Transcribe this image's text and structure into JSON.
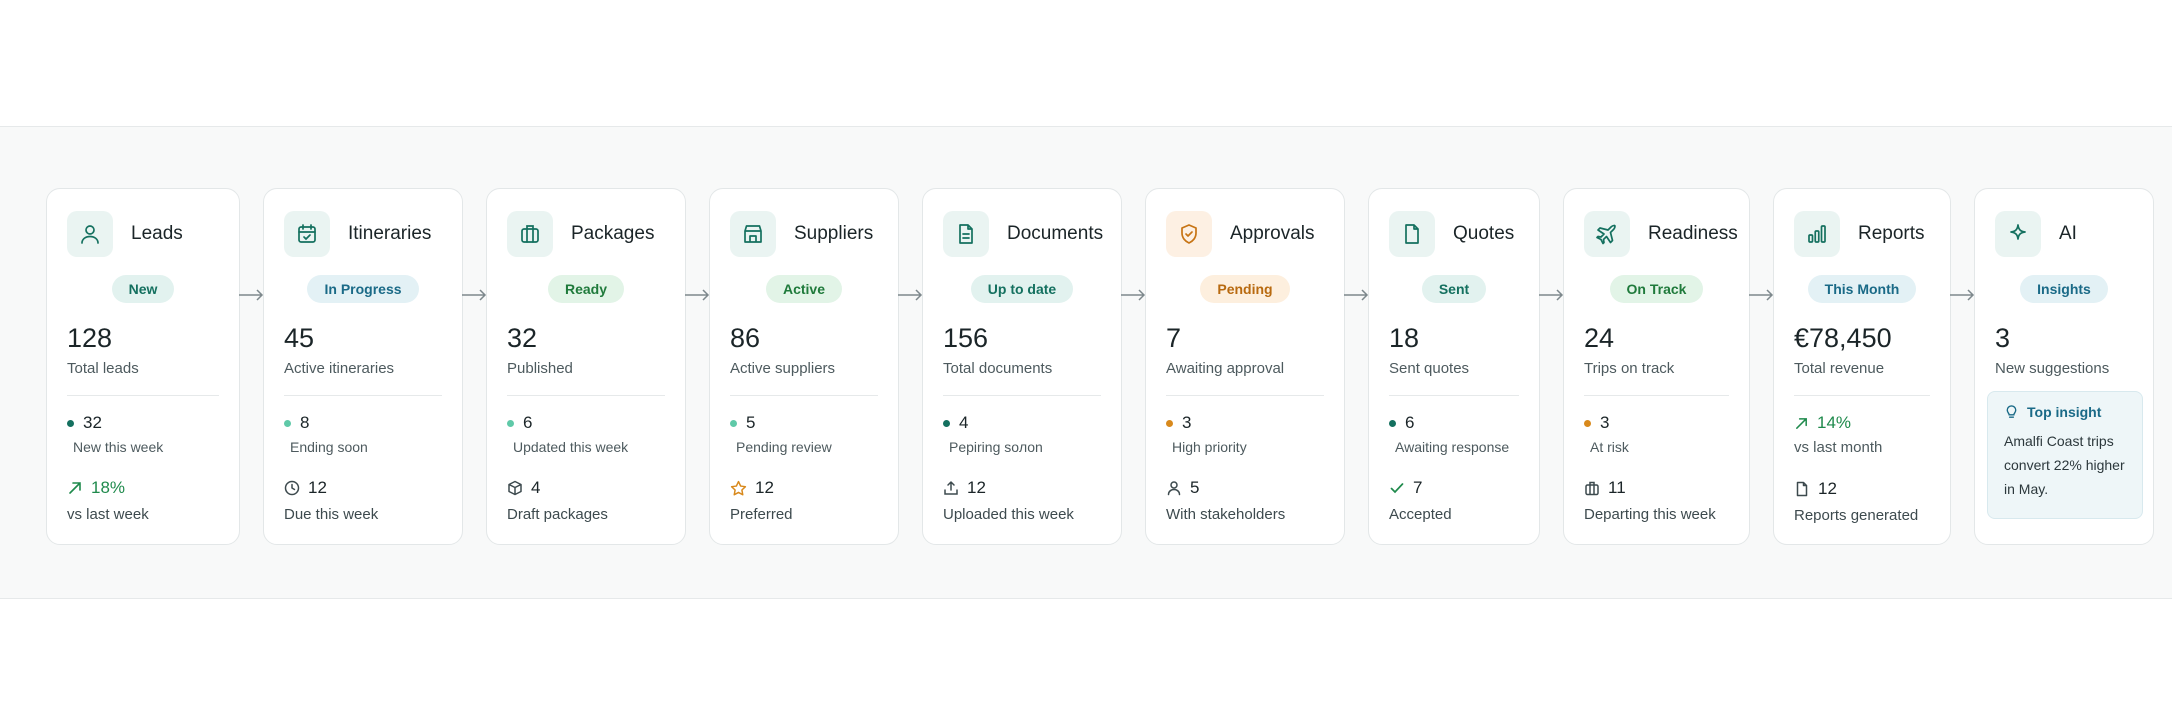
{
  "colors": {
    "teal": "#14705f",
    "blue": "#1a6a87",
    "green": "#1f7a3b",
    "orange": "#d8891c",
    "mint": "#5fc9a8"
  },
  "cards": [
    {
      "title": "Leads",
      "icon": "user-icon",
      "badge": "New",
      "value": "128",
      "value_label": "Total leads",
      "stat_value": "32",
      "stat_label": "New this week",
      "foot_icon": "trend-up-icon",
      "foot_value": "18%",
      "foot_label": "vs last week"
    },
    {
      "title": "Itineraries",
      "icon": "calendar-check-icon",
      "badge": "In Progress",
      "value": "45",
      "value_label": "Active itineraries",
      "stat_value": "8",
      "stat_label": "Ending soon",
      "foot_icon": "clock-icon",
      "foot_value": "12",
      "foot_label": "Due this week"
    },
    {
      "title": "Packages",
      "icon": "briefcase-icon",
      "badge": "Ready",
      "value": "32",
      "value_label": "Published",
      "stat_value": "6",
      "stat_label": "Updated this week",
      "foot_icon": "box-icon",
      "foot_value": "4",
      "foot_label": "Draft packages"
    },
    {
      "title": "Suppliers",
      "icon": "store-icon",
      "badge": "Active",
      "value": "86",
      "value_label": "Active suppliers",
      "stat_value": "5",
      "stat_label": "Pending review",
      "foot_icon": "star-icon",
      "foot_value": "12",
      "foot_label": "Preferred"
    },
    {
      "title": "Documents",
      "icon": "document-icon",
      "badge": "Up to date",
      "value": "156",
      "value_label": "Total documents",
      "stat_value": "4",
      "stat_label": "Pepiring soлon",
      "foot_icon": "upload-icon",
      "foot_value": "12",
      "foot_label": "Uploaded this week"
    },
    {
      "title": "Approvals",
      "icon": "shield-check-icon",
      "badge": "Pending",
      "value": "7",
      "value_label": "Awaiting approval",
      "stat_value": "3",
      "stat_label": "High priority",
      "foot_icon": "person-icon",
      "foot_value": "5",
      "foot_label": "With stakeholders"
    },
    {
      "title": "Quotes",
      "icon": "file-icon",
      "badge": "Sent",
      "value": "18",
      "value_label": "Sent quotes",
      "stat_value": "6",
      "stat_label": "Awaiting response",
      "foot_icon": "check-icon",
      "foot_value": "7",
      "foot_label": "Accepted"
    },
    {
      "title": "Readiness",
      "icon": "plane-icon",
      "badge": "On Track",
      "value": "24",
      "value_label": "Trips on track",
      "stat_value": "3",
      "stat_label": "At risk",
      "foot_icon": "luggage-icon",
      "foot_value": "11",
      "foot_label": "Departing this week"
    },
    {
      "title": "Reports",
      "icon": "bar-chart-icon",
      "badge": "This Month",
      "value": "€78,450",
      "value_label": "Total revenue",
      "stat_value": "14%",
      "stat_label": "vs last month",
      "foot_icon": "file-icon",
      "foot_value": "12",
      "foot_label": "Reports generated"
    },
    {
      "title": "AI",
      "icon": "sparkle-icon",
      "badge": "Insights",
      "value": "3",
      "value_label": "New suggestions",
      "insight_title": "Top insight",
      "insight_text": "Amalfi Coast trips convert 22% higher in May."
    }
  ]
}
